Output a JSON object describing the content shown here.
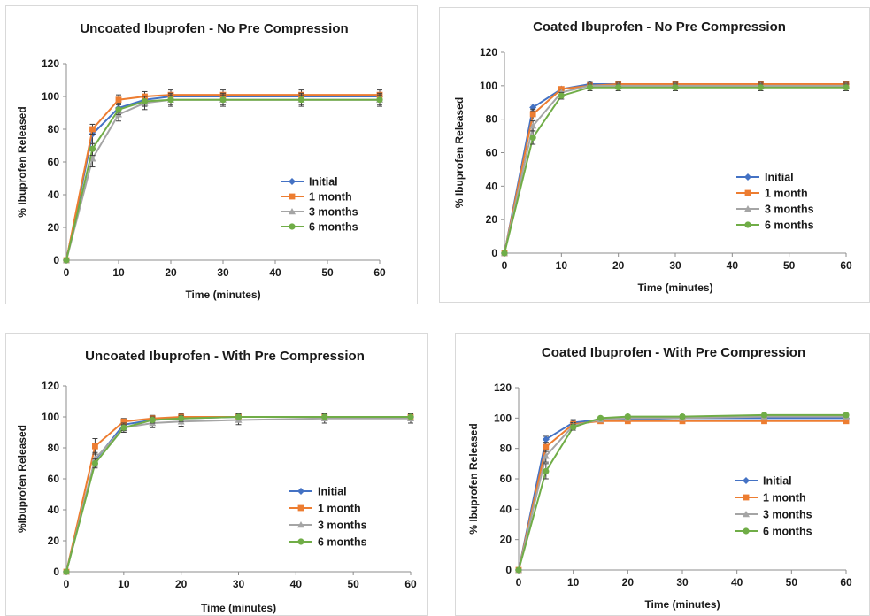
{
  "chart_data": [
    {
      "type": "line",
      "title": "Uncoated Ibuprofen - No Pre Compression",
      "xlabel": "Time (minutes)",
      "ylabel": "% Ibuprofen Released",
      "xlim": [
        0,
        60
      ],
      "ylim": [
        0,
        120
      ],
      "xticks": [
        "0",
        "10",
        "20",
        "30",
        "40",
        "50",
        "60"
      ],
      "yticks": [
        "0",
        "20",
        "40",
        "60",
        "80",
        "100",
        "120"
      ],
      "legend_position": "right-middle",
      "x": [
        0,
        5,
        10,
        15,
        20,
        30,
        45,
        60
      ],
      "series": [
        {
          "name": "Initial",
          "color": "#4472c4",
          "marker": "diamond",
          "values": [
            0,
            77,
            93,
            98,
            100,
            100,
            100,
            100
          ],
          "error": [
            0,
            6,
            3,
            2,
            2,
            2,
            2,
            2
          ]
        },
        {
          "name": "1 month",
          "color": "#ed7d31",
          "marker": "square",
          "values": [
            0,
            80,
            98,
            100,
            101,
            101,
            101,
            101
          ],
          "error": [
            0,
            3,
            3,
            3,
            3,
            3,
            3,
            3
          ]
        },
        {
          "name": "3 months",
          "color": "#a5a5a5",
          "marker": "triangle",
          "values": [
            0,
            62,
            89,
            96,
            98,
            98,
            98,
            98
          ],
          "error": [
            0,
            5,
            4,
            4,
            4,
            4,
            4,
            4
          ]
        },
        {
          "name": "6 months",
          "color": "#70ad47",
          "marker": "circle",
          "values": [
            0,
            68,
            92,
            97,
            98,
            98,
            98,
            98
          ],
          "error": [
            0,
            4,
            3,
            3,
            3,
            3,
            3,
            3
          ]
        }
      ]
    },
    {
      "type": "line",
      "title": "Coated Ibuprofen - No Pre Compression",
      "xlabel": "Time (minutes)",
      "ylabel": "% Ibuprofen Released",
      "xlim": [
        0,
        60
      ],
      "ylim": [
        0,
        120
      ],
      "xticks": [
        "0",
        "10",
        "20",
        "30",
        "40",
        "50",
        "60"
      ],
      "yticks": [
        "0",
        "20",
        "40",
        "60",
        "80",
        "100",
        "120"
      ],
      "legend_position": "right-middle",
      "x": [
        0,
        5,
        10,
        15,
        20,
        30,
        45,
        60
      ],
      "series": [
        {
          "name": "Initial",
          "color": "#4472c4",
          "marker": "diamond",
          "values": [
            0,
            87,
            98,
            101,
            101,
            101,
            101,
            101
          ],
          "error": [
            0,
            2,
            1,
            1,
            1,
            1,
            1,
            1
          ]
        },
        {
          "name": "1 month",
          "color": "#ed7d31",
          "marker": "square",
          "values": [
            0,
            83,
            98,
            100,
            101,
            101,
            101,
            101
          ],
          "error": [
            0,
            3,
            1,
            1,
            1,
            1,
            1,
            1
          ]
        },
        {
          "name": "3 months",
          "color": "#a5a5a5",
          "marker": "triangle",
          "values": [
            0,
            76,
            96,
            100,
            100,
            100,
            100,
            100
          ],
          "error": [
            0,
            3,
            2,
            2,
            2,
            2,
            2,
            2
          ]
        },
        {
          "name": "6 months",
          "color": "#70ad47",
          "marker": "circle",
          "values": [
            0,
            69,
            94,
            99,
            99,
            99,
            99,
            99
          ],
          "error": [
            0,
            4,
            2,
            2,
            2,
            2,
            2,
            2
          ]
        }
      ]
    },
    {
      "type": "line",
      "title": "Uncoated Ibuprofen - With Pre Compression",
      "xlabel": "Time (minutes)",
      "ylabel": "%Ibuprofen Released",
      "xlim": [
        0,
        60
      ],
      "ylim": [
        0,
        120
      ],
      "xticks": [
        "0",
        "10",
        "20",
        "30",
        "40",
        "50",
        "60"
      ],
      "yticks": [
        "0",
        "20",
        "40",
        "60",
        "80",
        "100",
        "120"
      ],
      "legend_position": "right-middle",
      "x": [
        0,
        5,
        10,
        15,
        20,
        30,
        45,
        60
      ],
      "series": [
        {
          "name": "Initial",
          "color": "#4472c4",
          "marker": "diamond",
          "values": [
            0,
            72,
            95,
            98,
            99,
            100,
            100,
            100
          ],
          "error": [
            0,
            4,
            2,
            2,
            2,
            2,
            2,
            2
          ]
        },
        {
          "name": "1 month",
          "color": "#ed7d31",
          "marker": "square",
          "values": [
            0,
            81,
            97,
            99,
            100,
            100,
            100,
            100
          ],
          "error": [
            0,
            5,
            2,
            2,
            2,
            2,
            2,
            2
          ]
        },
        {
          "name": "3 months",
          "color": "#a5a5a5",
          "marker": "triangle",
          "values": [
            0,
            73,
            93,
            96,
            97,
            98,
            99,
            99
          ],
          "error": [
            0,
            4,
            3,
            3,
            3,
            3,
            3,
            3
          ]
        },
        {
          "name": "6 months",
          "color": "#70ad47",
          "marker": "circle",
          "values": [
            0,
            70,
            93,
            98,
            99,
            100,
            100,
            100
          ],
          "error": [
            0,
            3,
            2,
            2,
            2,
            2,
            2,
            2
          ]
        }
      ]
    },
    {
      "type": "line",
      "title": "Coated Ibuprofen - With Pre Compression",
      "xlabel": "Time (minutes)",
      "ylabel": "% Ibuprofen Released",
      "xlim": [
        0,
        60
      ],
      "ylim": [
        0,
        120
      ],
      "xticks": [
        "0",
        "10",
        "20",
        "30",
        "40",
        "50",
        "60"
      ],
      "yticks": [
        "0",
        "20",
        "40",
        "60",
        "80",
        "100",
        "120"
      ],
      "legend_position": "right-middle",
      "x": [
        0,
        5,
        10,
        15,
        20,
        30,
        45,
        60
      ],
      "series": [
        {
          "name": "Initial",
          "color": "#4472c4",
          "marker": "diamond",
          "values": [
            0,
            86,
            97,
            99,
            99,
            100,
            100,
            100
          ],
          "error": [
            0,
            2,
            2,
            1,
            1,
            1,
            1,
            1
          ]
        },
        {
          "name": "1 month",
          "color": "#ed7d31",
          "marker": "square",
          "values": [
            0,
            81,
            96,
            98,
            98,
            98,
            98,
            98
          ],
          "error": [
            0,
            3,
            2,
            1,
            1,
            1,
            1,
            1
          ]
        },
        {
          "name": "3 months",
          "color": "#a5a5a5",
          "marker": "triangle",
          "values": [
            0,
            75,
            95,
            99,
            100,
            100,
            101,
            101
          ],
          "error": [
            0,
            4,
            2,
            1,
            1,
            1,
            1,
            1
          ]
        },
        {
          "name": "6 months",
          "color": "#70ad47",
          "marker": "circle",
          "values": [
            0,
            65,
            94,
            100,
            101,
            101,
            102,
            102
          ],
          "error": [
            0,
            5,
            2,
            1,
            1,
            1,
            1,
            1
          ]
        }
      ]
    }
  ]
}
